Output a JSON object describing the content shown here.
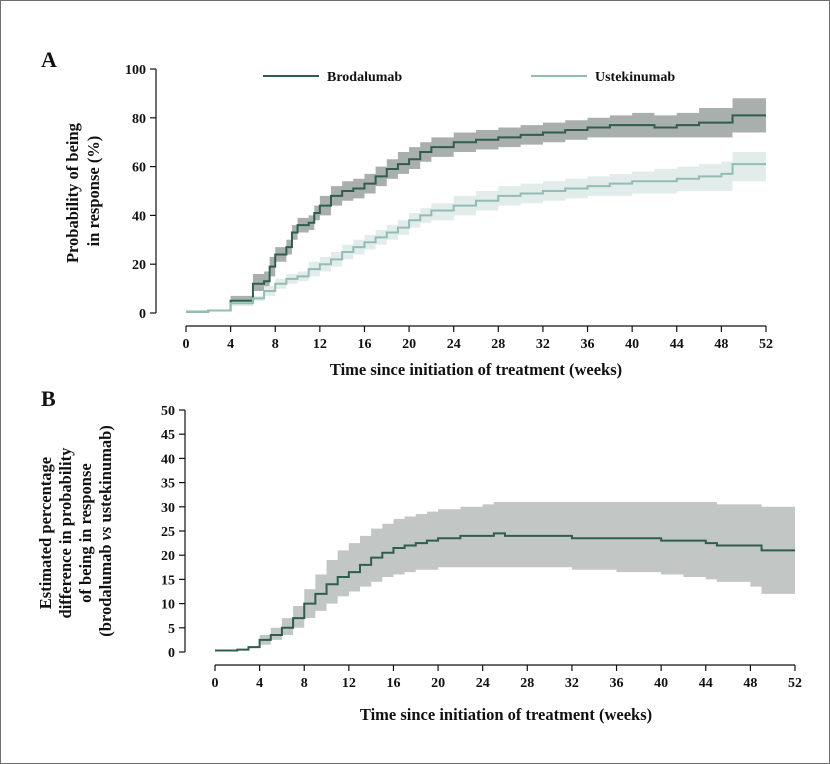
{
  "chart_data": [
    {
      "panel_label": "A",
      "type": "line",
      "step": true,
      "xlabel": "Time since initiation of treatment (weeks)",
      "ylabel": [
        "Probability of being",
        "in response (%)"
      ],
      "xlim": [
        0,
        52
      ],
      "ylim": [
        0,
        100
      ],
      "xticks": [
        0,
        4,
        8,
        12,
        16,
        20,
        24,
        28,
        32,
        36,
        40,
        44,
        48,
        52
      ],
      "yticks": [
        0,
        20,
        40,
        60,
        80,
        100
      ],
      "grid": false,
      "legend_position": "top",
      "series": [
        {
          "name": "Brodalumab",
          "color": "#2f5e4e",
          "band_color": "#a9afad",
          "x": [
            0,
            2,
            4,
            6,
            7,
            7.5,
            8,
            9,
            9.5,
            10,
            11,
            11.5,
            12,
            13,
            14,
            15,
            16,
            17,
            18,
            19,
            20,
            21,
            22,
            24,
            26,
            28,
            30,
            32,
            34,
            36,
            38,
            40,
            42,
            44,
            46,
            48,
            49,
            52
          ],
          "y": [
            0.5,
            1,
            5,
            12,
            13,
            19,
            24,
            27,
            33,
            36,
            37,
            41,
            44,
            48,
            50,
            51,
            53,
            56,
            59,
            61,
            63,
            66,
            68,
            70,
            71,
            72,
            73,
            74,
            75,
            76,
            77,
            77,
            76,
            77,
            78,
            78,
            81,
            81
          ],
          "lower": [
            0.5,
            1,
            3,
            9,
            10,
            15,
            21,
            24,
            30,
            33,
            34,
            38,
            40,
            44,
            46,
            47,
            49,
            52,
            55,
            57,
            59,
            62,
            64,
            66,
            67,
            68,
            69,
            70,
            71,
            72,
            72,
            72,
            72,
            72,
            72,
            72,
            74,
            74
          ],
          "upper": [
            0.5,
            1,
            7,
            16,
            17,
            23,
            27,
            30,
            36,
            39,
            40,
            44,
            48,
            52,
            54,
            55,
            57,
            60,
            63,
            66,
            68,
            70,
            72,
            74,
            75,
            76,
            77,
            78,
            79,
            80,
            81,
            82,
            81,
            82,
            84,
            84,
            88,
            88
          ]
        },
        {
          "name": "Ustekinumab",
          "color": "#93bdb2",
          "band_color": "#e1eceb",
          "x": [
            0,
            2,
            4,
            6,
            7,
            8,
            9,
            10,
            11,
            12,
            13,
            14,
            15,
            16,
            17,
            18,
            19,
            20,
            21,
            22,
            24,
            26,
            28,
            30,
            32,
            34,
            36,
            38,
            40,
            42,
            44,
            46,
            48,
            49,
            52
          ],
          "y": [
            0.5,
            1,
            4,
            6,
            9,
            12,
            14,
            15,
            18,
            20,
            22,
            25,
            27,
            29,
            31,
            33,
            35,
            38,
            40,
            42,
            44,
            46,
            48,
            49,
            50,
            51,
            52,
            53,
            54,
            54,
            55,
            56,
            57,
            61,
            61
          ],
          "lower": [
            0.5,
            1,
            3,
            5,
            7,
            10,
            12,
            13,
            15,
            17,
            19,
            22,
            24,
            26,
            28,
            30,
            32,
            35,
            37,
            38,
            40,
            42,
            44,
            45,
            46,
            47,
            48,
            48,
            49,
            49,
            50,
            50,
            50,
            54,
            54
          ],
          "upper": [
            0.5,
            1,
            5,
            7,
            11,
            14,
            16,
            17,
            21,
            23,
            25,
            28,
            30,
            32,
            34,
            36,
            38,
            41,
            43,
            45,
            48,
            50,
            52,
            53,
            54,
            55,
            56,
            57,
            58,
            59,
            60,
            61,
            62,
            66,
            66
          ]
        }
      ]
    },
    {
      "panel_label": "B",
      "type": "line",
      "step": true,
      "xlabel": "Time since initiation of treatment (weeks)",
      "ylabel": [
        "Estimated percentage",
        "difference in probability",
        "of being in response",
        "(brodalumab |vs| ustekinumab)"
      ],
      "xlim": [
        0,
        52
      ],
      "ylim": [
        0,
        50
      ],
      "xticks": [
        0,
        4,
        8,
        12,
        16,
        20,
        24,
        28,
        32,
        36,
        40,
        44,
        48,
        52
      ],
      "yticks": [
        0,
        5,
        10,
        15,
        20,
        25,
        30,
        35,
        40,
        45,
        50
      ],
      "grid": false,
      "series": [
        {
          "color": "#2f5e4e",
          "band_color": "#c2c7c5",
          "x": [
            0,
            2,
            3,
            4,
            5,
            6,
            7,
            8,
            9,
            10,
            11,
            12,
            13,
            14,
            15,
            16,
            17,
            18,
            19,
            20,
            22,
            24,
            25,
            26,
            28,
            30,
            32,
            33,
            36,
            40,
            42,
            44,
            45,
            48,
            49,
            52
          ],
          "y": [
            0.3,
            0.5,
            1,
            2.5,
            3.5,
            5,
            7,
            10,
            12,
            14,
            15.5,
            16.5,
            18,
            19.5,
            20.5,
            21.5,
            22,
            22.5,
            23,
            23.5,
            24,
            24,
            24.5,
            24,
            24,
            24,
            23.5,
            23.5,
            23.5,
            23,
            23,
            22.5,
            22,
            22,
            21,
            21
          ],
          "lower": [
            0.3,
            0.5,
            0.8,
            1.5,
            2.5,
            3.5,
            5,
            7,
            8.5,
            10,
            11.5,
            12.5,
            13.5,
            14.5,
            15.5,
            16,
            16.5,
            17,
            17,
            17.5,
            17.5,
            17.5,
            17.5,
            17.5,
            17.5,
            17.5,
            17,
            17,
            16.5,
            16,
            15.5,
            15,
            14.5,
            13.5,
            12,
            12
          ],
          "upper": [
            0.3,
            0.5,
            1.2,
            3.5,
            5,
            7,
            9.5,
            13,
            16,
            19,
            21,
            22.5,
            24,
            25.5,
            26.5,
            27.5,
            28,
            28.5,
            29,
            29.5,
            30,
            30.5,
            31,
            31,
            31,
            31,
            31,
            31,
            31,
            31,
            31,
            31,
            30.5,
            30.5,
            30,
            30
          ]
        }
      ]
    }
  ]
}
